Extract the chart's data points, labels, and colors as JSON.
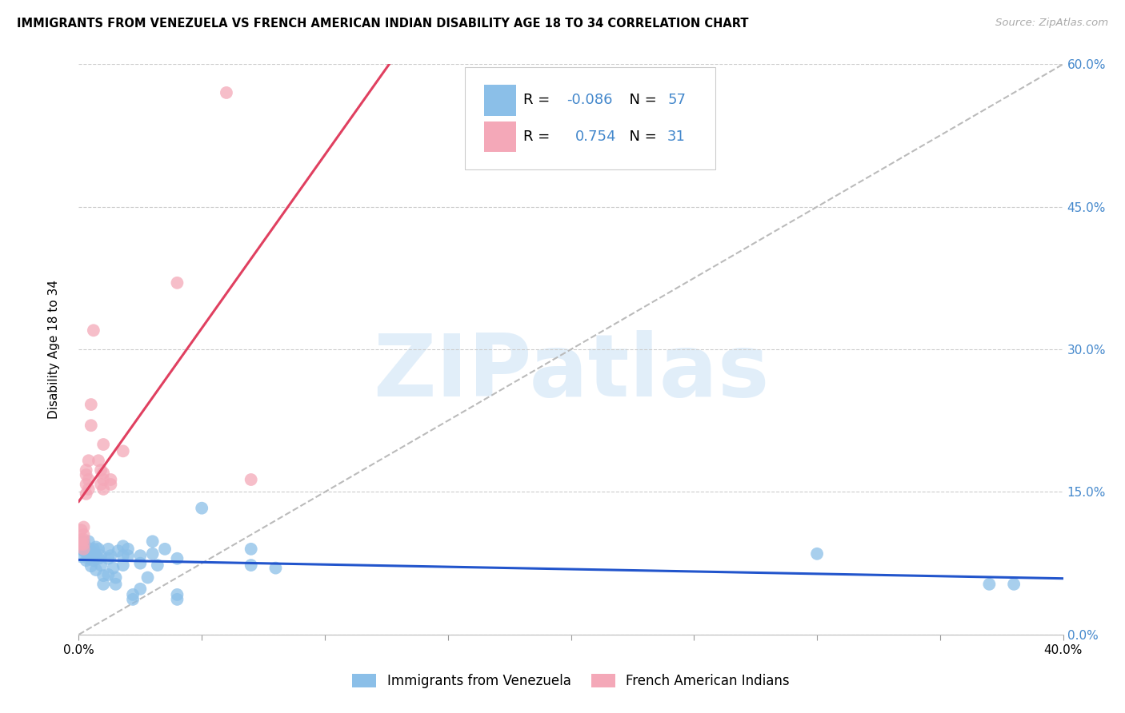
{
  "title": "IMMIGRANTS FROM VENEZUELA VS FRENCH AMERICAN INDIAN DISABILITY AGE 18 TO 34 CORRELATION CHART",
  "source": "Source: ZipAtlas.com",
  "ylabel": "Disability Age 18 to 34",
  "watermark": "ZIPatlas",
  "legend_blue_R": "-0.086",
  "legend_blue_N": "57",
  "legend_pink_R": "0.754",
  "legend_pink_N": "31",
  "xmin": 0.0,
  "xmax": 0.4,
  "ymin": 0.0,
  "ymax": 0.6,
  "blue_color": "#8bbfe8",
  "pink_color": "#f4a8b8",
  "blue_line_color": "#2255cc",
  "pink_line_color": "#e04060",
  "grid_color": "#cccccc",
  "background_color": "#ffffff",
  "tick_color_right": "#4488cc",
  "blue_dots": [
    [
      0.001,
      0.09
    ],
    [
      0.001,
      0.082
    ],
    [
      0.002,
      0.098
    ],
    [
      0.002,
      0.088
    ],
    [
      0.003,
      0.078
    ],
    [
      0.003,
      0.092
    ],
    [
      0.004,
      0.083
    ],
    [
      0.004,
      0.098
    ],
    [
      0.004,
      0.08
    ],
    [
      0.005,
      0.088
    ],
    [
      0.005,
      0.08
    ],
    [
      0.005,
      0.072
    ],
    [
      0.006,
      0.09
    ],
    [
      0.006,
      0.083
    ],
    [
      0.006,
      0.078
    ],
    [
      0.007,
      0.092
    ],
    [
      0.007,
      0.083
    ],
    [
      0.007,
      0.068
    ],
    [
      0.008,
      0.09
    ],
    [
      0.008,
      0.08
    ],
    [
      0.009,
      0.083
    ],
    [
      0.009,
      0.073
    ],
    [
      0.01,
      0.062
    ],
    [
      0.01,
      0.053
    ],
    [
      0.012,
      0.09
    ],
    [
      0.012,
      0.08
    ],
    [
      0.012,
      0.063
    ],
    [
      0.013,
      0.083
    ],
    [
      0.014,
      0.07
    ],
    [
      0.015,
      0.06
    ],
    [
      0.015,
      0.053
    ],
    [
      0.016,
      0.088
    ],
    [
      0.018,
      0.093
    ],
    [
      0.018,
      0.083
    ],
    [
      0.018,
      0.073
    ],
    [
      0.02,
      0.09
    ],
    [
      0.02,
      0.083
    ],
    [
      0.022,
      0.042
    ],
    [
      0.022,
      0.037
    ],
    [
      0.025,
      0.075
    ],
    [
      0.025,
      0.083
    ],
    [
      0.025,
      0.048
    ],
    [
      0.028,
      0.06
    ],
    [
      0.03,
      0.098
    ],
    [
      0.03,
      0.085
    ],
    [
      0.032,
      0.073
    ],
    [
      0.035,
      0.09
    ],
    [
      0.04,
      0.08
    ],
    [
      0.04,
      0.042
    ],
    [
      0.04,
      0.037
    ],
    [
      0.05,
      0.133
    ],
    [
      0.07,
      0.09
    ],
    [
      0.07,
      0.073
    ],
    [
      0.08,
      0.07
    ],
    [
      0.3,
      0.085
    ],
    [
      0.37,
      0.053
    ],
    [
      0.38,
      0.053
    ]
  ],
  "pink_dots": [
    [
      0.001,
      0.095
    ],
    [
      0.001,
      0.1
    ],
    [
      0.001,
      0.11
    ],
    [
      0.002,
      0.095
    ],
    [
      0.002,
      0.105
    ],
    [
      0.002,
      0.1
    ],
    [
      0.002,
      0.113
    ],
    [
      0.002,
      0.09
    ],
    [
      0.003,
      0.173
    ],
    [
      0.003,
      0.158
    ],
    [
      0.003,
      0.148
    ],
    [
      0.003,
      0.168
    ],
    [
      0.004,
      0.163
    ],
    [
      0.004,
      0.183
    ],
    [
      0.004,
      0.153
    ],
    [
      0.005,
      0.22
    ],
    [
      0.005,
      0.242
    ],
    [
      0.006,
      0.32
    ],
    [
      0.008,
      0.183
    ],
    [
      0.009,
      0.173
    ],
    [
      0.009,
      0.158
    ],
    [
      0.01,
      0.153
    ],
    [
      0.01,
      0.163
    ],
    [
      0.01,
      0.17
    ],
    [
      0.01,
      0.2
    ],
    [
      0.013,
      0.158
    ],
    [
      0.013,
      0.163
    ],
    [
      0.018,
      0.193
    ],
    [
      0.04,
      0.37
    ],
    [
      0.06,
      0.57
    ],
    [
      0.07,
      0.163
    ]
  ],
  "x_tick_positions": [
    0.0,
    0.4
  ],
  "x_tick_inner": [
    0.05,
    0.1,
    0.15,
    0.2,
    0.25,
    0.3,
    0.35
  ],
  "y_ticks": [
    0.0,
    0.15,
    0.3,
    0.45,
    0.6
  ]
}
